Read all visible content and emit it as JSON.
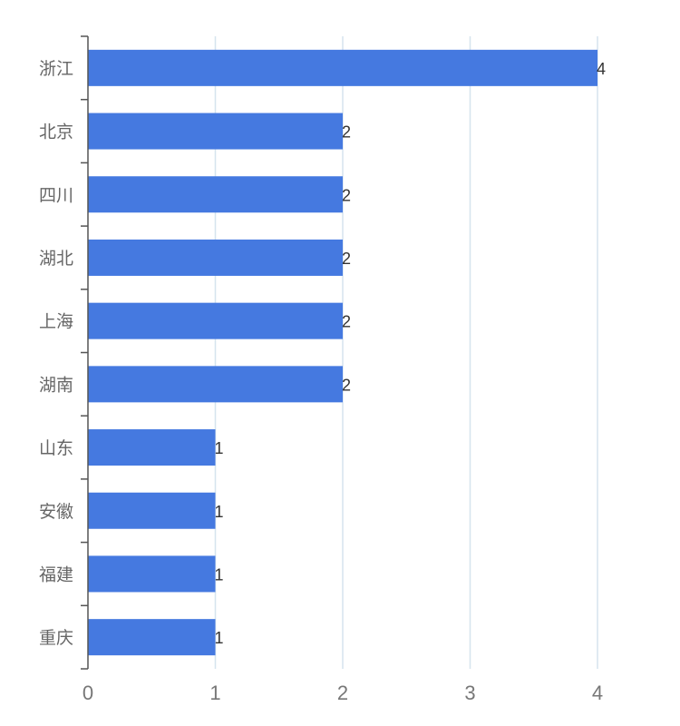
{
  "chart_data": {
    "type": "bar",
    "orientation": "horizontal",
    "categories": [
      "浙江",
      "北京",
      "四川",
      "湖北",
      "上海",
      "湖南",
      "山东",
      "安徽",
      "福建",
      "重庆"
    ],
    "values": [
      4,
      2,
      2,
      2,
      2,
      2,
      1,
      1,
      1,
      1
    ],
    "xlim": [
      0,
      4
    ],
    "x_ticks": [
      "0",
      "1",
      "2",
      "3",
      "4"
    ],
    "grid": "vertical",
    "data_labels": true,
    "bar_color": "#4579e0",
    "grid_color": "#d6e4ee",
    "axis_color": "#555555"
  }
}
